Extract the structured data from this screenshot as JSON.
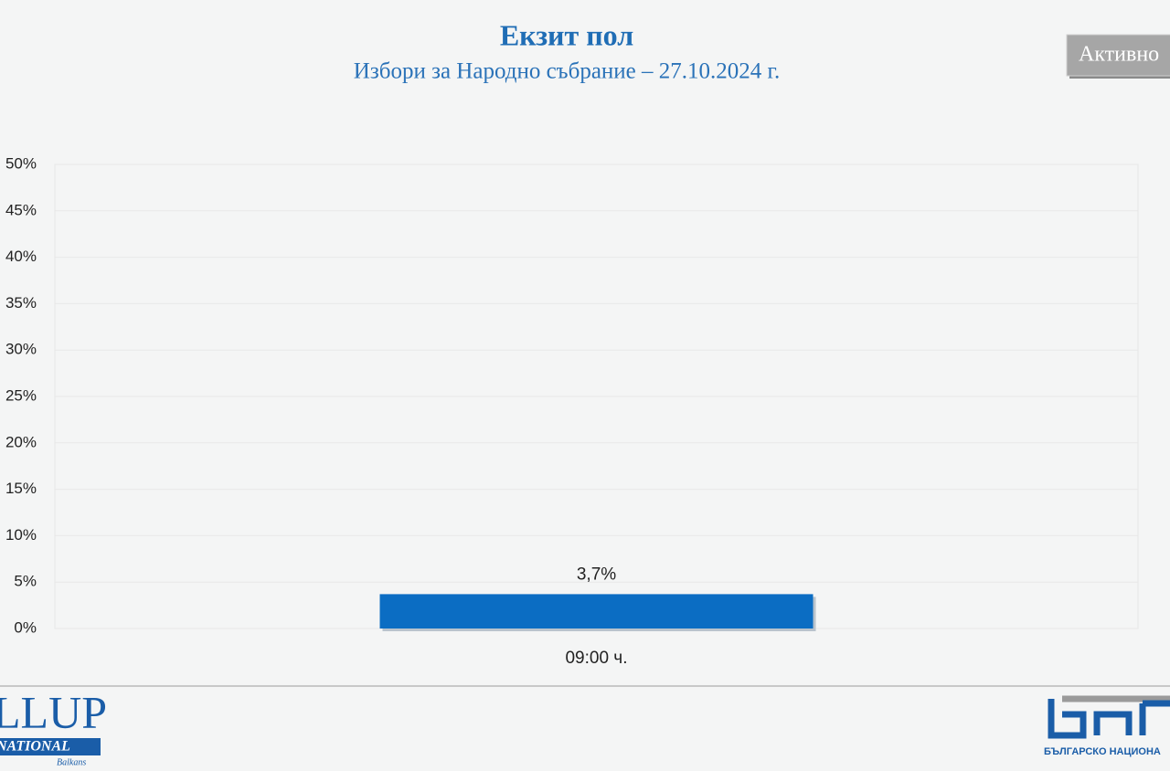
{
  "chart_data": {
    "type": "bar",
    "title": "Екзит пол",
    "subtitle": "Избори за Народно събрание – 27.10.2024 г.",
    "categories": [
      "09:00 ч."
    ],
    "values": [
      3.7
    ],
    "value_labels": [
      "3,7%"
    ],
    "color": "#0b6dc3",
    "ylim": [
      0,
      50
    ],
    "yticks": [
      {
        "value": 0,
        "label": "0%"
      },
      {
        "value": 5,
        "label": "5%"
      },
      {
        "value": 10,
        "label": "10%"
      },
      {
        "value": 15,
        "label": "15%"
      },
      {
        "value": 20,
        "label": "20%"
      },
      {
        "value": 25,
        "label": "25%"
      },
      {
        "value": 30,
        "label": "30%"
      },
      {
        "value": 35,
        "label": "35%"
      },
      {
        "value": 40,
        "label": "40%"
      },
      {
        "value": 45,
        "label": "45%"
      },
      {
        "value": 50,
        "label": "50%"
      }
    ],
    "grid": true
  },
  "button": "Активно",
  "logos": {
    "gallup": "LLUP",
    "gallup_sub": "NATIONAL",
    "gallup_region": "Balkans",
    "bnt": "БЪЛГАРСКО НАЦИОНА"
  }
}
